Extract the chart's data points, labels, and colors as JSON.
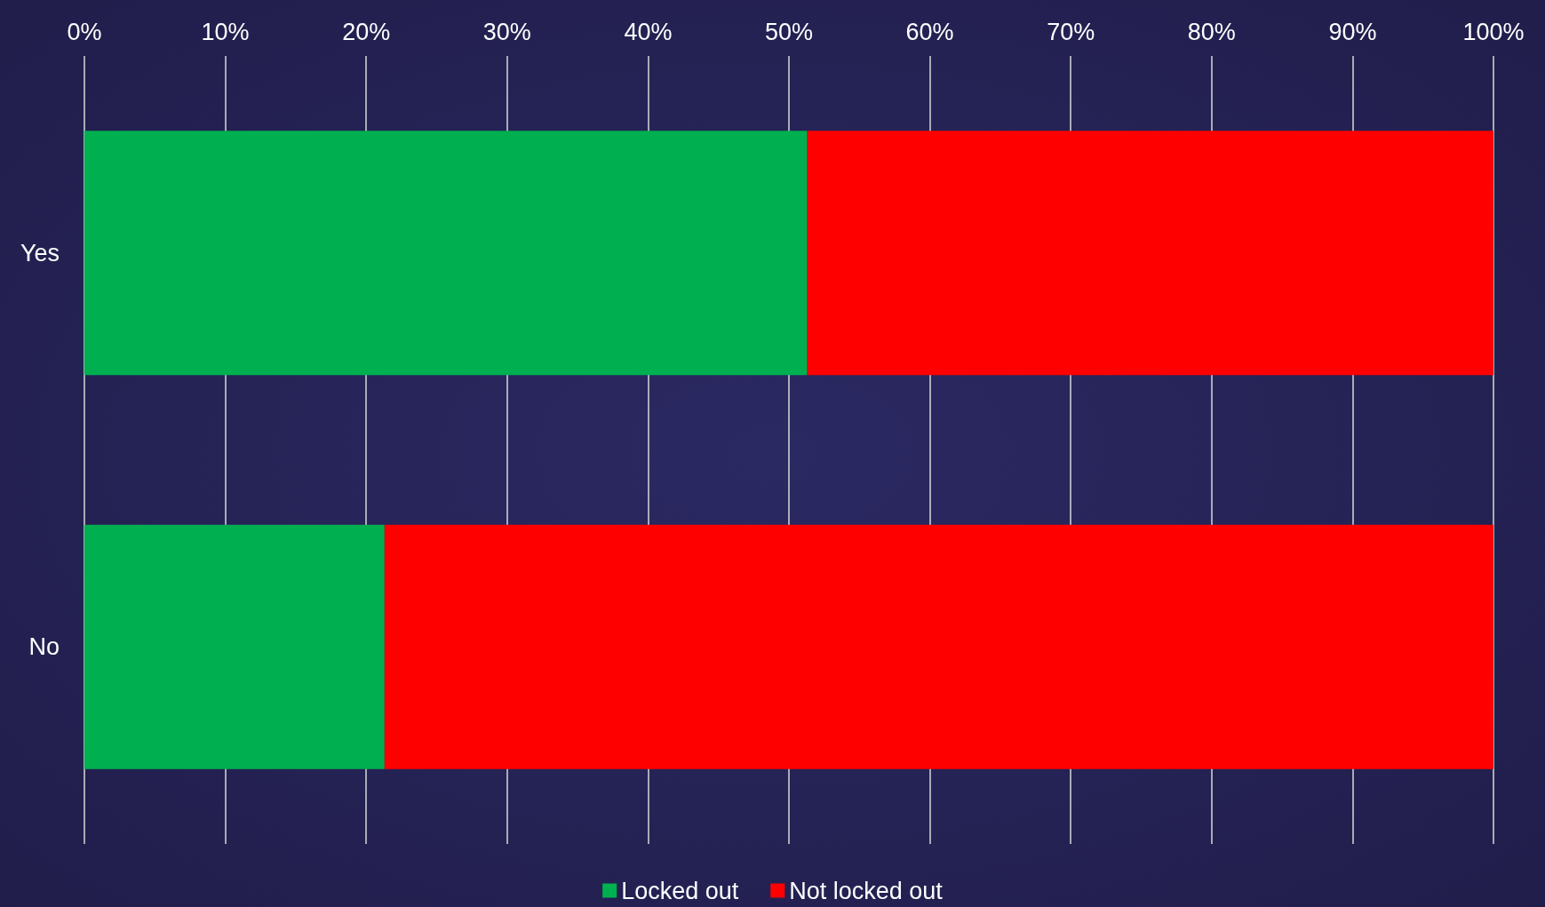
{
  "chart_data": {
    "type": "bar",
    "orientation": "horizontal",
    "stacked": true,
    "categories": [
      "Yes",
      "No"
    ],
    "series": [
      {
        "name": "Locked out",
        "color": "#00b050",
        "values": [
          51.3,
          21.3
        ]
      },
      {
        "name": "Not locked out",
        "color": "#ff0000",
        "values": [
          48.7,
          78.7
        ]
      }
    ],
    "xlim": [
      0,
      100
    ],
    "xticks": [
      {
        "value": 0,
        "label": "0%"
      },
      {
        "value": 10,
        "label": "10%"
      },
      {
        "value": 20,
        "label": "20%"
      },
      {
        "value": 30,
        "label": "30%"
      },
      {
        "value": 40,
        "label": "40%"
      },
      {
        "value": 50,
        "label": "50%"
      },
      {
        "value": 60,
        "label": "60%"
      },
      {
        "value": 70,
        "label": "70%"
      },
      {
        "value": 80,
        "label": "80%"
      },
      {
        "value": 90,
        "label": "90%"
      },
      {
        "value": 100,
        "label": "100%"
      }
    ],
    "grid": "x",
    "legend": "bottom"
  }
}
